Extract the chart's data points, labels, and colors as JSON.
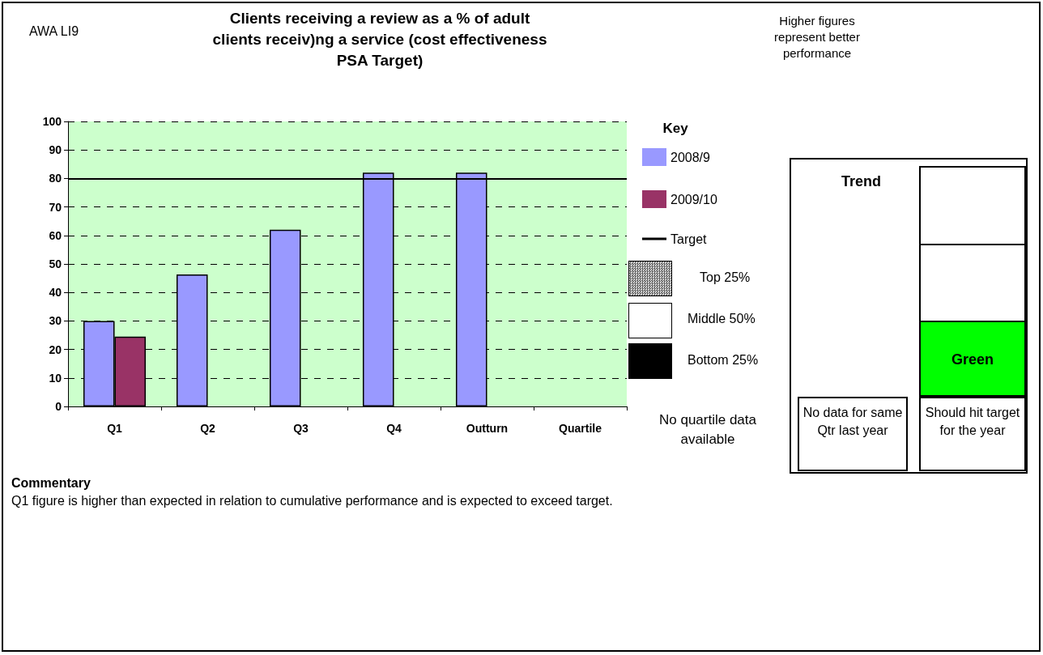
{
  "chart_data": {
    "type": "bar",
    "title": "Clients receiving a review as a % of adult clients receiv)ng a service (cost effectiveness PSA Target)",
    "legend_title": "Key",
    "categories": [
      "Q1",
      "Q2",
      "Q3",
      "Q4",
      "Outturn",
      "Quartile"
    ],
    "series": [
      {
        "name": "2008/9",
        "color": "#9999ff",
        "values": [
          30,
          46.3,
          62,
          82,
          82,
          null
        ]
      },
      {
        "name": "2009/10",
        "color": "#993366",
        "values": [
          24.5,
          null,
          null,
          null,
          null,
          null
        ]
      }
    ],
    "ylim": [
      0,
      100
    ],
    "yticks": [
      0,
      10,
      20,
      30,
      40,
      50,
      60,
      70,
      80,
      90,
      100
    ],
    "grid": "y",
    "legend": "right",
    "ref_lines": [
      {
        "axis": "y",
        "value": 80,
        "label": "Target",
        "color": "#000000"
      }
    ],
    "annotations": [
      "AWA LI9",
      "Higher figures represent better performance",
      "Top 25%",
      "Middle 50%",
      "Bottom 25%",
      "No quartile data available",
      "Trend",
      "Green",
      "No data for same Qtr last year",
      "Should hit target for the year",
      "Commentary",
      "Q1 figure is higher than expected in relation to cumulative performance and is expected to exceed target."
    ]
  }
}
